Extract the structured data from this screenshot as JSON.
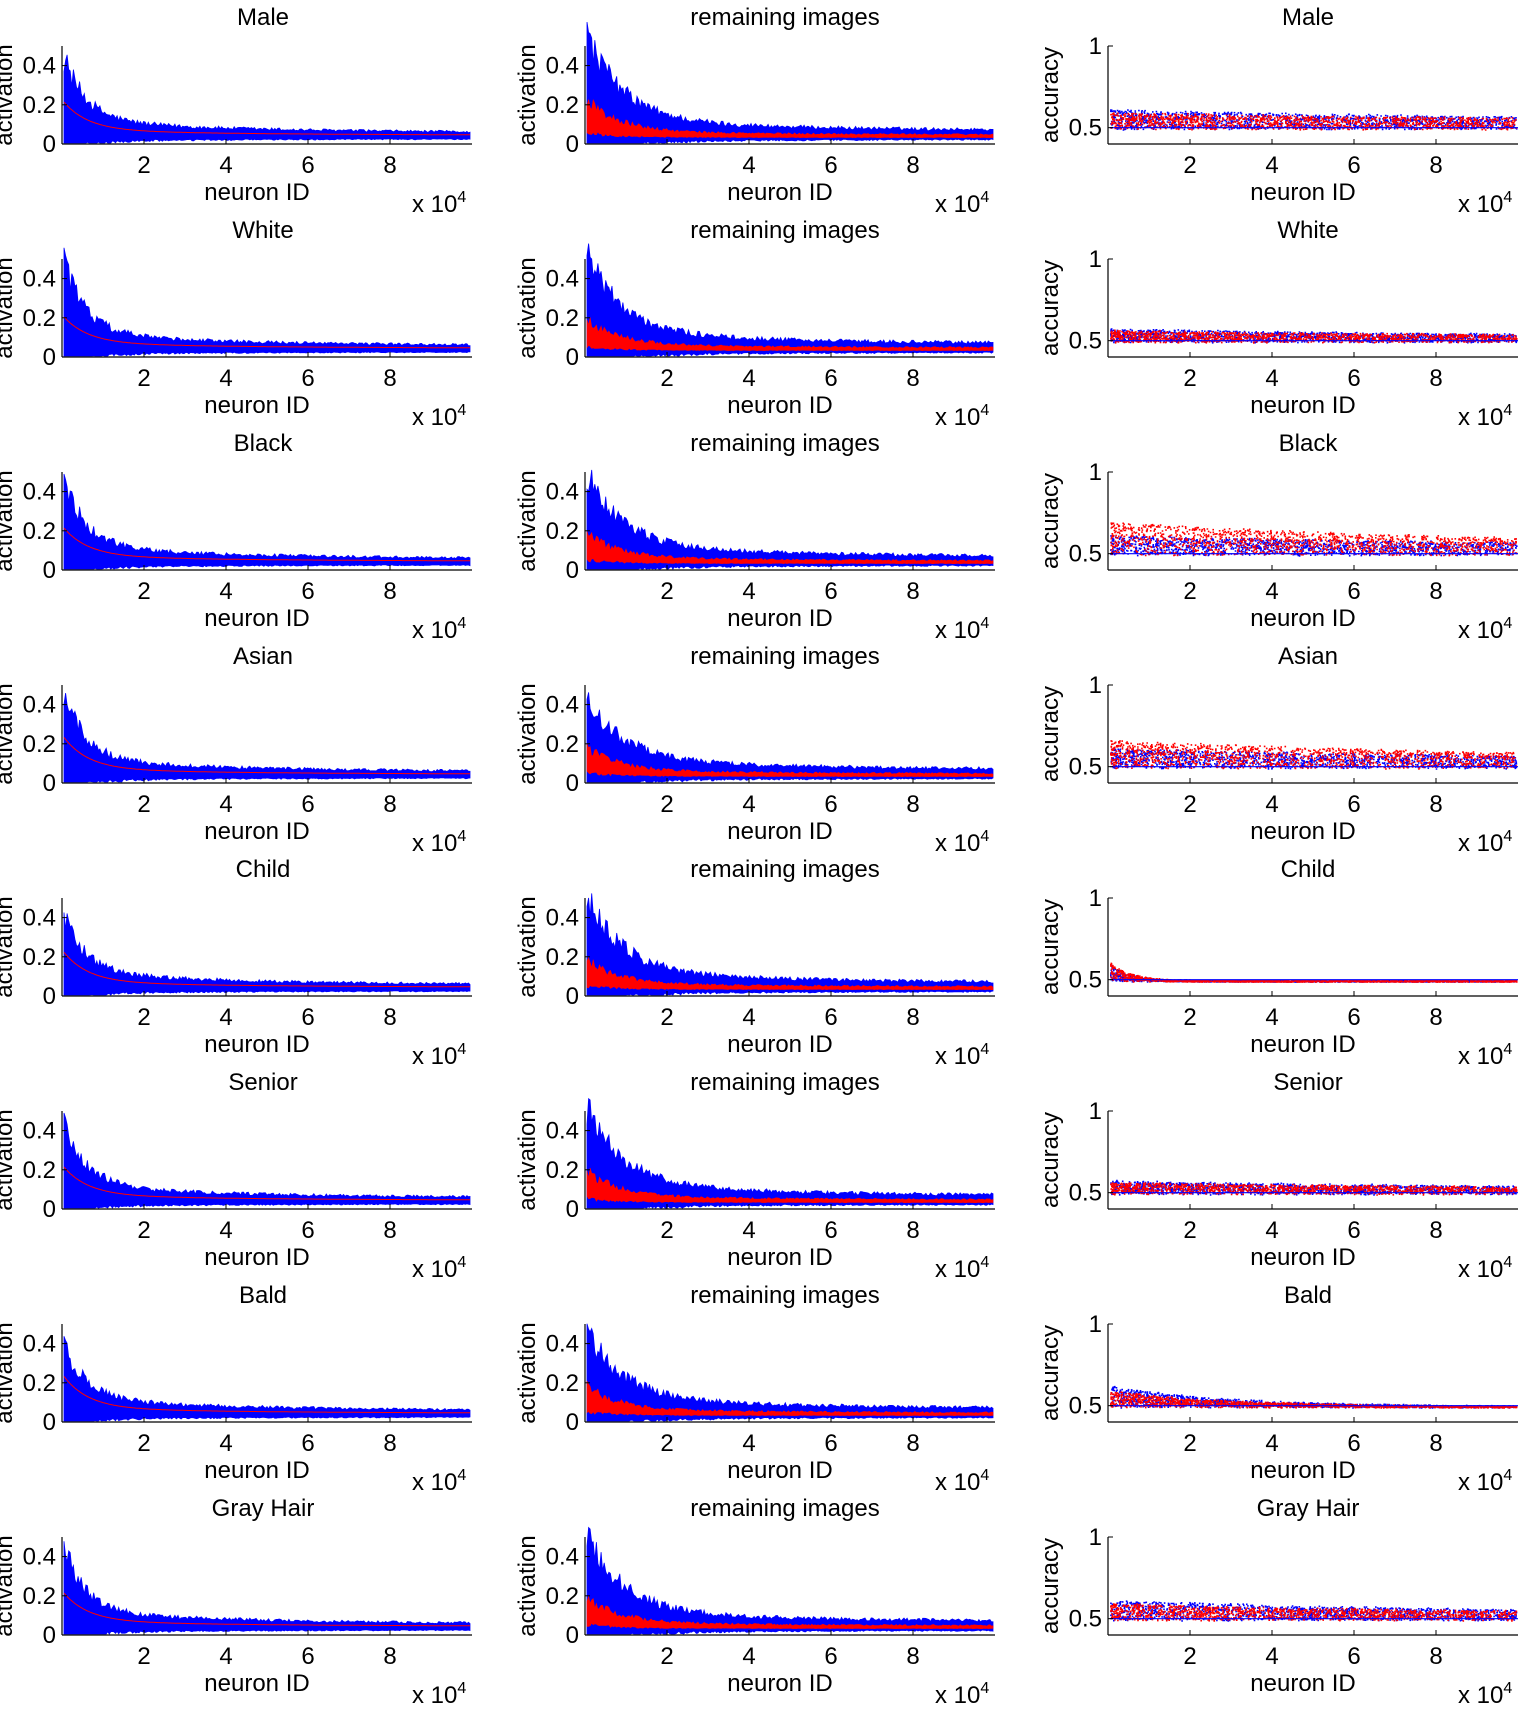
{
  "figure": {
    "colors": {
      "blue": "#0000ff",
      "red": "#ff0000",
      "axis": "#000000"
    },
    "rows": [
      {
        "left_title": "Male",
        "middle_title": "remaining images",
        "right_title": "Male",
        "left_mean_start": 0.15,
        "left_spread": 0.36,
        "middle_red_start": 0.27,
        "middle_blue_start": 0.48,
        "right_red_peak": 0.6,
        "right_blue_peak": 0.62,
        "right_decay_x": 10,
        "right_tail": 0.55,
        "right_spread": 0.07
      },
      {
        "left_title": "White",
        "middle_title": "remaining images",
        "right_title": "White",
        "left_mean_start": 0.14,
        "left_spread": 0.4,
        "middle_red_start": 0.22,
        "middle_blue_start": 0.44,
        "right_red_peak": 0.57,
        "right_blue_peak": 0.58,
        "right_decay_x": 10,
        "right_tail": 0.53,
        "right_spread": 0.05
      },
      {
        "left_title": "Black",
        "middle_title": "remaining images",
        "right_title": "Black",
        "left_mean_start": 0.15,
        "left_spread": 0.38,
        "middle_red_start": 0.2,
        "middle_blue_start": 0.41,
        "right_red_peak": 0.7,
        "right_blue_peak": 0.62,
        "right_decay_x": 10,
        "right_tail": 0.55,
        "right_spread": 0.07
      },
      {
        "left_title": "Asian",
        "middle_title": "remaining images",
        "right_title": "Asian",
        "left_mean_start": 0.17,
        "left_spread": 0.37,
        "middle_red_start": 0.2,
        "middle_blue_start": 0.35,
        "right_red_peak": 0.67,
        "right_blue_peak": 0.62,
        "right_decay_x": 10,
        "right_tail": 0.55,
        "right_spread": 0.07
      },
      {
        "left_title": "Child",
        "middle_title": "remaining images",
        "right_title": "Child",
        "left_mean_start": 0.16,
        "left_spread": 0.33,
        "middle_red_start": 0.2,
        "middle_blue_start": 0.42,
        "right_red_peak": 0.62,
        "right_blue_peak": 0.6,
        "right_decay_x": 0.5,
        "right_tail": 0.5,
        "right_spread": 0.04
      },
      {
        "left_title": "Senior",
        "middle_title": "remaining images",
        "right_title": "Senior",
        "left_mean_start": 0.15,
        "left_spread": 0.36,
        "middle_red_start": 0.22,
        "middle_blue_start": 0.44,
        "right_red_peak": 0.57,
        "right_blue_peak": 0.58,
        "right_decay_x": 10,
        "right_tail": 0.53,
        "right_spread": 0.05
      },
      {
        "left_title": "Bald",
        "middle_title": "remaining images",
        "right_title": "Bald",
        "left_mean_start": 0.17,
        "left_spread": 0.3,
        "middle_red_start": 0.2,
        "middle_blue_start": 0.38,
        "right_red_peak": 0.6,
        "right_blue_peak": 0.63,
        "right_decay_x": 3,
        "right_tail": 0.5,
        "right_spread": 0.05
      },
      {
        "left_title": "Gray Hair",
        "middle_title": "remaining images",
        "right_title": "Gray Hair",
        "left_mean_start": 0.15,
        "left_spread": 0.36,
        "middle_red_start": 0.22,
        "middle_blue_start": 0.44,
        "right_red_peak": 0.6,
        "right_blue_peak": 0.62,
        "right_decay_x": 10,
        "right_tail": 0.53,
        "right_spread": 0.05
      }
    ]
  },
  "chart_data": {
    "type": "area",
    "layout": "8 rows x 3 columns of small-multiple plots",
    "left_column": {
      "type": "area",
      "xlabel": "neuron ID",
      "ylabel": "activation",
      "x_multiplier_label": "x 10^4",
      "xlim": [
        0,
        10
      ],
      "ylim": [
        0,
        0.5
      ],
      "xticks": [
        2,
        4,
        6,
        8
      ],
      "yticks": [
        0,
        0.2,
        0.4
      ],
      "series": [
        {
          "name": "",
          "color": "blue",
          "description": "per-neuron activation range, decaying from ~0.4 to ~0.02"
        },
        {
          "name": "",
          "color": "red",
          "description": "mean activation curve decaying from ~0.15 to ~0.02"
        }
      ]
    },
    "middle_column": {
      "type": "area",
      "xlabel": "neuron ID",
      "ylabel": "activation",
      "x_multiplier_label": "x 10^4",
      "xlim": [
        0,
        10
      ],
      "ylim": [
        0,
        0.5
      ],
      "xticks": [
        2,
        4,
        6,
        8
      ],
      "yticks": [
        0,
        0.2,
        0.4
      ],
      "series": [
        {
          "name": "",
          "color": "blue"
        },
        {
          "name": "",
          "color": "red"
        }
      ]
    },
    "right_column": {
      "type": "scatter",
      "xlabel": "neuron ID",
      "ylabel": "accuracy",
      "x_multiplier_label": "x 10^4",
      "xlim": [
        0,
        10
      ],
      "ylim": [
        0.4,
        1
      ],
      "xticks": [
        2,
        4,
        6,
        8
      ],
      "yticks": [
        0.5,
        1
      ],
      "series": [
        {
          "name": "",
          "color": "blue"
        },
        {
          "name": "",
          "color": "red"
        }
      ]
    },
    "grid": false,
    "legend": "none"
  },
  "axis_text": {
    "xlabel": "neuron ID",
    "ylabel_activation": "activation",
    "ylabel_accuracy": "accuracy",
    "multiplier_base": "x 10",
    "multiplier_exp": "4",
    "xticks": [
      "2",
      "4",
      "6",
      "8"
    ],
    "yticks_activation": [
      "0",
      "0.2",
      "0.4"
    ],
    "yticks_accuracy": [
      "0.5",
      "1"
    ]
  }
}
